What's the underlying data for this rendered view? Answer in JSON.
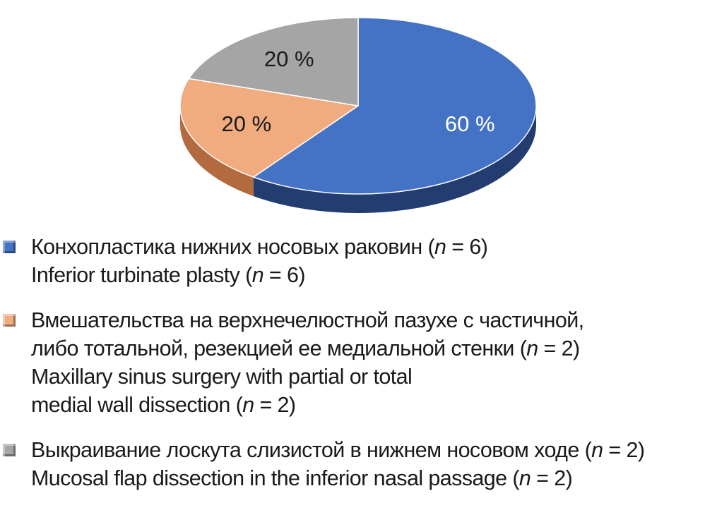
{
  "chart_data": {
    "type": "pie",
    "title": "",
    "slices": [
      {
        "label": "60 %",
        "value": 60,
        "color": "#4472c4",
        "side_color": "#233d70"
      },
      {
        "label": "20 %",
        "value": 20,
        "color": "#f0ac7e",
        "side_color": "#b26a3e"
      },
      {
        "label": "20 %",
        "value": 20,
        "color": "#a5a5a5",
        "side_color": "#6a6a6a"
      }
    ],
    "label_color_on_dark": "#ffffff",
    "label_color_on_light": "#1a1a1a",
    "legend_position": "bottom",
    "legend": [
      {
        "color": "#4472c4",
        "lines": [
          {
            "text": "Конхопластика нижних носовых раковин (",
            "var": "n",
            "rest": " = 6)"
          },
          {
            "text": "Inferior turbinate plasty (",
            "var": "n",
            "rest": " = 6)"
          }
        ]
      },
      {
        "color": "#f0ac7e",
        "lines": [
          {
            "text": "Вмешательства на верхнечелюстной пазухе с частичной,",
            "var": "",
            "rest": ""
          },
          {
            "text": "либо тотальной, резекцией ее медиальной стенки (",
            "var": "n",
            "rest": " = 2)"
          },
          {
            "text": "Maxillary sinus surgery with partial or total",
            "var": "",
            "rest": ""
          },
          {
            "text": "medial wall dissection (",
            "var": "n",
            "rest": " = 2)"
          }
        ]
      },
      {
        "color": "#a5a5a5",
        "lines": [
          {
            "text": "Выкраивание лоскута слизистой в нижнем носовом ходе (",
            "var": "n",
            "rest": " = 2)"
          },
          {
            "text": "Mucosal flap dissection in the inferior nasal passage (",
            "var": "n",
            "rest": " = 2)"
          }
        ]
      }
    ]
  }
}
